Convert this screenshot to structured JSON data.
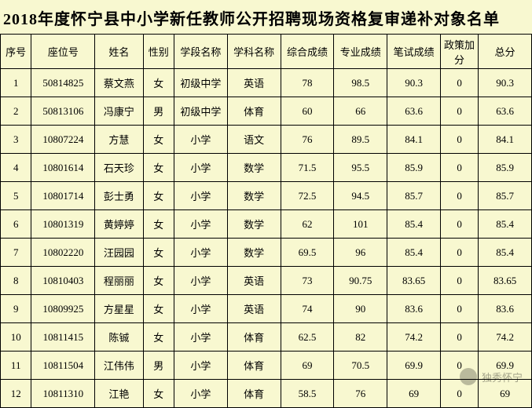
{
  "title": "2018年度怀宁县中小学新任教师公开招聘现场资格复审递补对象名单",
  "table": {
    "columns": [
      "序号",
      "座位号",
      "姓名",
      "性别",
      "学段名称",
      "学科名称",
      "综合成绩",
      "专业成绩",
      "笔试成绩",
      "政策加分",
      "总分"
    ],
    "rows": [
      [
        "1",
        "50814825",
        "蔡文燕",
        "女",
        "初级中学",
        "英语",
        "78",
        "98.5",
        "90.3",
        "0",
        "90.3"
      ],
      [
        "2",
        "50813106",
        "冯康宁",
        "男",
        "初级中学",
        "体育",
        "60",
        "66",
        "63.6",
        "0",
        "63.6"
      ],
      [
        "3",
        "10807224",
        "方慧",
        "女",
        "小学",
        "语文",
        "76",
        "89.5",
        "84.1",
        "0",
        "84.1"
      ],
      [
        "4",
        "10801614",
        "石天珍",
        "女",
        "小学",
        "数学",
        "71.5",
        "95.5",
        "85.9",
        "0",
        "85.9"
      ],
      [
        "5",
        "10801714",
        "彭士勇",
        "女",
        "小学",
        "数学",
        "72.5",
        "94.5",
        "85.7",
        "0",
        "85.7"
      ],
      [
        "6",
        "10801319",
        "黄婷婷",
        "女",
        "小学",
        "数学",
        "62",
        "101",
        "85.4",
        "0",
        "85.4"
      ],
      [
        "7",
        "10802220",
        "汪园园",
        "女",
        "小学",
        "数学",
        "69.5",
        "96",
        "85.4",
        "0",
        "85.4"
      ],
      [
        "8",
        "10810403",
        "程丽丽",
        "女",
        "小学",
        "英语",
        "73",
        "90.75",
        "83.65",
        "0",
        "83.65"
      ],
      [
        "9",
        "10809925",
        "方星星",
        "女",
        "小学",
        "英语",
        "74",
        "90",
        "83.6",
        "0",
        "83.6"
      ],
      [
        "10",
        "10811415",
        "陈铖",
        "女",
        "小学",
        "体育",
        "62.5",
        "82",
        "74.2",
        "0",
        "74.2"
      ],
      [
        "11",
        "10811504",
        "江伟伟",
        "男",
        "小学",
        "体育",
        "69",
        "70.5",
        "69.9",
        "0",
        "69.9"
      ],
      [
        "12",
        "10811310",
        "江艳",
        "女",
        "小学",
        "体育",
        "58.5",
        "76",
        "69",
        "0",
        "69"
      ]
    ],
    "col_classes": [
      "c-seq",
      "c-seat",
      "c-name",
      "c-sex",
      "c-stage",
      "c-subj",
      "c-comp",
      "c-prof",
      "c-exam",
      "c-bonus",
      "c-total"
    ],
    "background_color": "#f8f8d0",
    "border_color": "#000000",
    "title_fontsize": 20,
    "body_fontsize": 13
  },
  "watermark": {
    "text": "独秀怀宁"
  }
}
